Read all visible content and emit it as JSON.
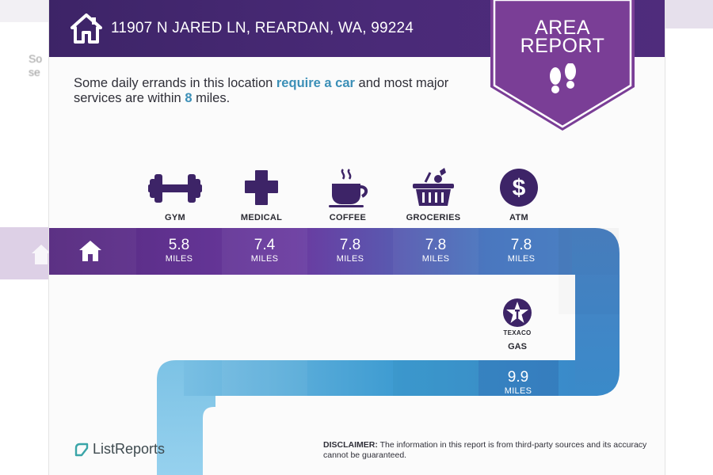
{
  "header": {
    "address": "11907 N JARED LN, REARDAN, WA, 99224"
  },
  "badge": {
    "title_line1": "AREA",
    "title_line2": "REPORT",
    "icon": "footsteps-icon"
  },
  "intro": {
    "part1": "Some daily errands in this location ",
    "highlight1": "require a car",
    "part2": " and most major services are within ",
    "highlight2": "8",
    "part3": " miles."
  },
  "categories": [
    {
      "label": "GYM",
      "icon": "dumbbell-icon",
      "distance": "5.8",
      "unit": "MILES"
    },
    {
      "label": "MEDICAL",
      "icon": "medical-cross-icon",
      "distance": "7.4",
      "unit": "MILES"
    },
    {
      "label": "COFFEE",
      "icon": "coffee-cup-icon",
      "distance": "7.8",
      "unit": "MILES"
    },
    {
      "label": "GROCERIES",
      "icon": "grocery-basket-icon",
      "distance": "7.8",
      "unit": "MILES"
    },
    {
      "label": "ATM",
      "icon": "dollar-icon",
      "distance": "7.8",
      "unit": "MILES"
    }
  ],
  "gas": {
    "brand": "TEXACO",
    "label": "GAS",
    "icon": "texaco-star-icon",
    "distance": "9.9",
    "unit": "MILES"
  },
  "footer": {
    "brand": "ListReports",
    "disclaimer_label": "DISCLAIMER:",
    "disclaimer_text": " The information in this report is from third-party sources and its accuracy cannot be guaranteed."
  },
  "backdrop": {
    "text_line1": "So",
    "text_line2": "se"
  },
  "colors": {
    "header": "#3d2467",
    "badge": "#7a3e96",
    "highlight": "#3b8fb7",
    "ribbon_start": "#5b2d85",
    "ribbon_end": "#8cc9e8"
  }
}
